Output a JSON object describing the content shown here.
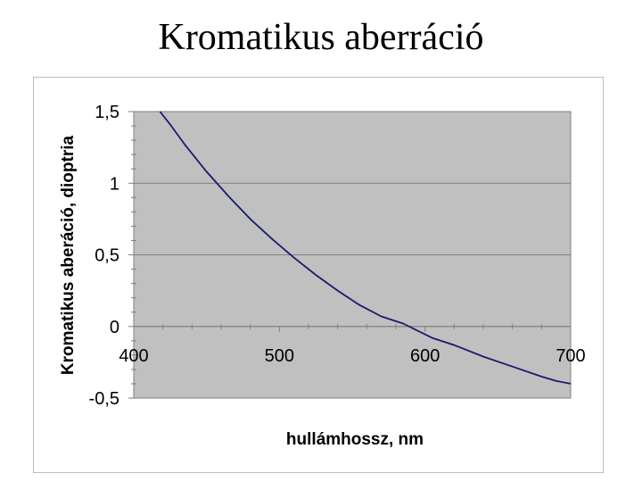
{
  "slide_title": "Kromatikus aberráció",
  "chart_data": {
    "type": "line",
    "title": "Kromatikus aberráció",
    "xlabel": "hullámhossz, nm",
    "ylabel": "Kromatikus aberáció, dioptria",
    "xlim": [
      400,
      700
    ],
    "ylim": [
      -0.5,
      1.5
    ],
    "x_ticks": [
      400,
      500,
      600,
      700
    ],
    "x_tick_labels": [
      "400",
      "500",
      "600",
      "700"
    ],
    "y_ticks": [
      1.5,
      1,
      0.5,
      0,
      -0.5
    ],
    "y_tick_labels": [
      "1,5",
      "1",
      "0,5",
      "0",
      "-0,5"
    ],
    "grid": "horizontal",
    "legend": "none",
    "series": [
      {
        "color": "#1a1a6e",
        "x": [
          418,
          425,
          435,
          450,
          465,
          480,
          495,
          510,
          525,
          540,
          555,
          570,
          585,
          595,
          605,
          620,
          640,
          660,
          680,
          690,
          700
        ],
        "y": [
          1.5,
          1.41,
          1.27,
          1.08,
          0.91,
          0.75,
          0.61,
          0.48,
          0.36,
          0.25,
          0.15,
          0.07,
          0.02,
          -0.03,
          -0.08,
          -0.13,
          -0.21,
          -0.28,
          -0.35,
          -0.38,
          -0.4
        ]
      }
    ],
    "plot_background": "#c0c0c0"
  }
}
